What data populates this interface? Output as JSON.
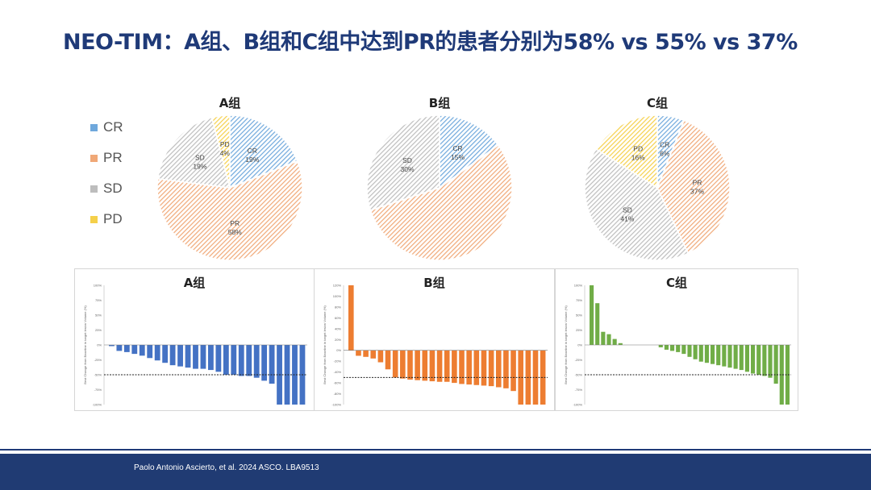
{
  "title": "NEO-TIM：A组、B组和C组中达到PR的患者分别为58% vs 55% vs 37%",
  "legend": [
    {
      "label": "CR",
      "color": "#6fa8dc"
    },
    {
      "label": "PR",
      "color": "#f0a877"
    },
    {
      "label": "SD",
      "color": "#bdbdbd"
    },
    {
      "label": "PD",
      "color": "#f5d04a"
    }
  ],
  "pie_charts": [
    {
      "title": "A组",
      "slices": [
        {
          "category": "CR",
          "value": 19,
          "label_name": "CR",
          "label_value": "19%"
        },
        {
          "category": "PR",
          "value": 58,
          "label_name": "PR",
          "label_value": "58%"
        },
        {
          "category": "SD",
          "value": 19,
          "label_name": "SD",
          "label_value": "19%"
        },
        {
          "category": "PD",
          "value": 4,
          "label_name": "PD",
          "label_value": "4%"
        }
      ]
    },
    {
      "title": "B组",
      "slices": [
        {
          "category": "CR",
          "value": 15,
          "label_name": "CR",
          "label_value": "15%"
        },
        {
          "category": "PR",
          "value": 55,
          "label_name": "",
          "label_value": ""
        },
        {
          "category": "SD",
          "value": 30,
          "label_name": "SD",
          "label_value": "30%"
        }
      ]
    },
    {
      "title": "C组",
      "slices": [
        {
          "category": "CR",
          "value": 6,
          "label_name": "CR",
          "label_value": "6%"
        },
        {
          "category": "PR",
          "value": 37,
          "label_name": "PR",
          "label_value": "37%"
        },
        {
          "category": "SD",
          "value": 41,
          "label_name": "SD",
          "label_value": "41%"
        },
        {
          "category": "PD",
          "value": 16,
          "label_name": "PD",
          "label_value": "16%"
        }
      ]
    }
  ],
  "waterfalls": [
    {
      "title": "A组",
      "color": "#4472c4",
      "ylabel": "Best Change from Baseline in target lesion Volume (%)",
      "values": [
        -2,
        -10,
        -12,
        -15,
        -18,
        -22,
        -26,
        -30,
        -34,
        -36,
        -38,
        -40,
        -40,
        -42,
        -45,
        -50,
        -50,
        -52,
        -52,
        -55,
        -60,
        -65,
        -100,
        -100,
        -100,
        -100
      ]
    },
    {
      "title": "B组",
      "color": "#ed7d31",
      "ylabel": "Best Change from Baseline in target lesion Volume (%)",
      "values": [
        120,
        -10,
        -12,
        -15,
        -22,
        -35,
        -50,
        -52,
        -54,
        -55,
        -56,
        -57,
        -58,
        -58,
        -60,
        -62,
        -63,
        -64,
        -65,
        -66,
        -68,
        -70,
        -75,
        -100,
        -100,
        -100,
        -100
      ]
    },
    {
      "title": "C组",
      "color": "#70ad47",
      "ylabel": "Best Change from Baseline in target lesion Volume (%)",
      "values": [
        100,
        70,
        22,
        18,
        10,
        3,
        0,
        0,
        0,
        0,
        0,
        0,
        -4,
        -8,
        -10,
        -12,
        -15,
        -20,
        -24,
        -28,
        -30,
        -32,
        -34,
        -36,
        -38,
        -40,
        -42,
        -45,
        -48,
        -50,
        -52,
        -55,
        -65,
        -100,
        -100
      ]
    }
  ],
  "chart_data": [
    {
      "type": "pie",
      "title": "A组",
      "categories": [
        "CR",
        "PR",
        "SD",
        "PD"
      ],
      "values": [
        19,
        58,
        19,
        4
      ]
    },
    {
      "type": "pie",
      "title": "B组",
      "categories": [
        "CR",
        "PR",
        "SD"
      ],
      "values": [
        15,
        55,
        30
      ]
    },
    {
      "type": "pie",
      "title": "C组",
      "categories": [
        "CR",
        "PR",
        "SD",
        "PD"
      ],
      "values": [
        6,
        37,
        41,
        16
      ]
    },
    {
      "type": "bar",
      "title": "A组",
      "ylabel": "Best Change from Baseline in target lesion Volume (%)",
      "ylim": [
        -100,
        100
      ],
      "reference_line": -50,
      "values": [
        -2,
        -10,
        -12,
        -15,
        -18,
        -22,
        -26,
        -30,
        -34,
        -36,
        -38,
        -40,
        -40,
        -42,
        -45,
        -50,
        -50,
        -52,
        -52,
        -55,
        -60,
        -65,
        -100,
        -100,
        -100,
        -100
      ]
    },
    {
      "type": "bar",
      "title": "B组",
      "ylabel": "Best Change from Baseline in target lesion Volume (%)",
      "ylim": [
        -100,
        120
      ],
      "reference_line": -50,
      "values": [
        120,
        -10,
        -12,
        -15,
        -22,
        -35,
        -50,
        -52,
        -54,
        -55,
        -56,
        -57,
        -58,
        -58,
        -60,
        -62,
        -63,
        -64,
        -65,
        -66,
        -68,
        -70,
        -75,
        -100,
        -100,
        -100,
        -100
      ]
    },
    {
      "type": "bar",
      "title": "C组",
      "ylabel": "Best Change from Baseline in target lesion Volume (%)",
      "ylim": [
        -100,
        100
      ],
      "reference_line": -50,
      "values": [
        100,
        70,
        22,
        18,
        10,
        3,
        0,
        0,
        0,
        0,
        0,
        0,
        -4,
        -8,
        -10,
        -12,
        -15,
        -20,
        -24,
        -28,
        -30,
        -32,
        -34,
        -36,
        -38,
        -40,
        -42,
        -45,
        -48,
        -50,
        -52,
        -55,
        -65,
        -100,
        -100
      ]
    }
  ],
  "ticks": [
    "100%",
    "75%",
    "50%",
    "25%",
    "0%",
    "-25%",
    "-50%",
    "-75%",
    "-100%"
  ],
  "ticks_b": [
    "120%",
    "100%",
    "80%",
    "60%",
    "40%",
    "20%",
    "0%",
    "-20%",
    "-40%",
    "-60%",
    "-80%",
    "-100%"
  ],
  "footer": {
    "citation": "Paolo Antonio Ascierto, et al. 2024 ASCO. LBA9513"
  }
}
